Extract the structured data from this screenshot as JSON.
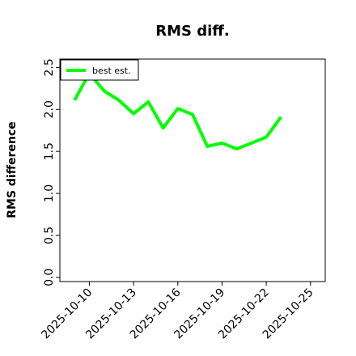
{
  "chart_data": {
    "type": "line",
    "title": "RMS diff.",
    "xlabel": "",
    "ylabel": "RMS difference",
    "xlim": [
      "2025-10-08",
      "2025-10-26"
    ],
    "ylim": [
      -0.05,
      2.6
    ],
    "x_ticks": [
      "2025-10-10",
      "2025-10-13",
      "2025-10-16",
      "2025-10-19",
      "2025-10-22",
      "2025-10-25"
    ],
    "y_ticks": [
      "0.0",
      "0.5",
      "1.0",
      "1.5",
      "2.0",
      "2.5"
    ],
    "grid": false,
    "legend_position": "top-left",
    "series": [
      {
        "name": "best est.",
        "color": "#00ff00",
        "x": [
          "2025-10-09",
          "2025-10-10",
          "2025-10-11",
          "2025-10-12",
          "2025-10-13",
          "2025-10-14",
          "2025-10-15",
          "2025-10-16",
          "2025-10-17",
          "2025-10-18",
          "2025-10-19",
          "2025-10-20",
          "2025-10-21",
          "2025-10-22",
          "2025-10-23"
        ],
        "values": [
          2.11,
          2.43,
          2.22,
          2.11,
          1.95,
          2.09,
          1.78,
          2.01,
          1.94,
          1.56,
          1.6,
          1.53,
          1.6,
          1.67,
          1.91
        ]
      }
    ]
  }
}
